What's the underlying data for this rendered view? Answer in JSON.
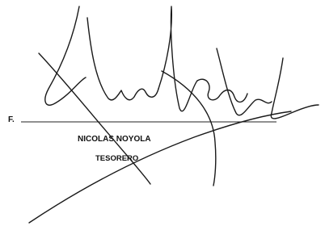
{
  "signature_block": {
    "prefix": "F.",
    "name": "NICOLAS NOYOLA",
    "title": "TESORERO"
  }
}
